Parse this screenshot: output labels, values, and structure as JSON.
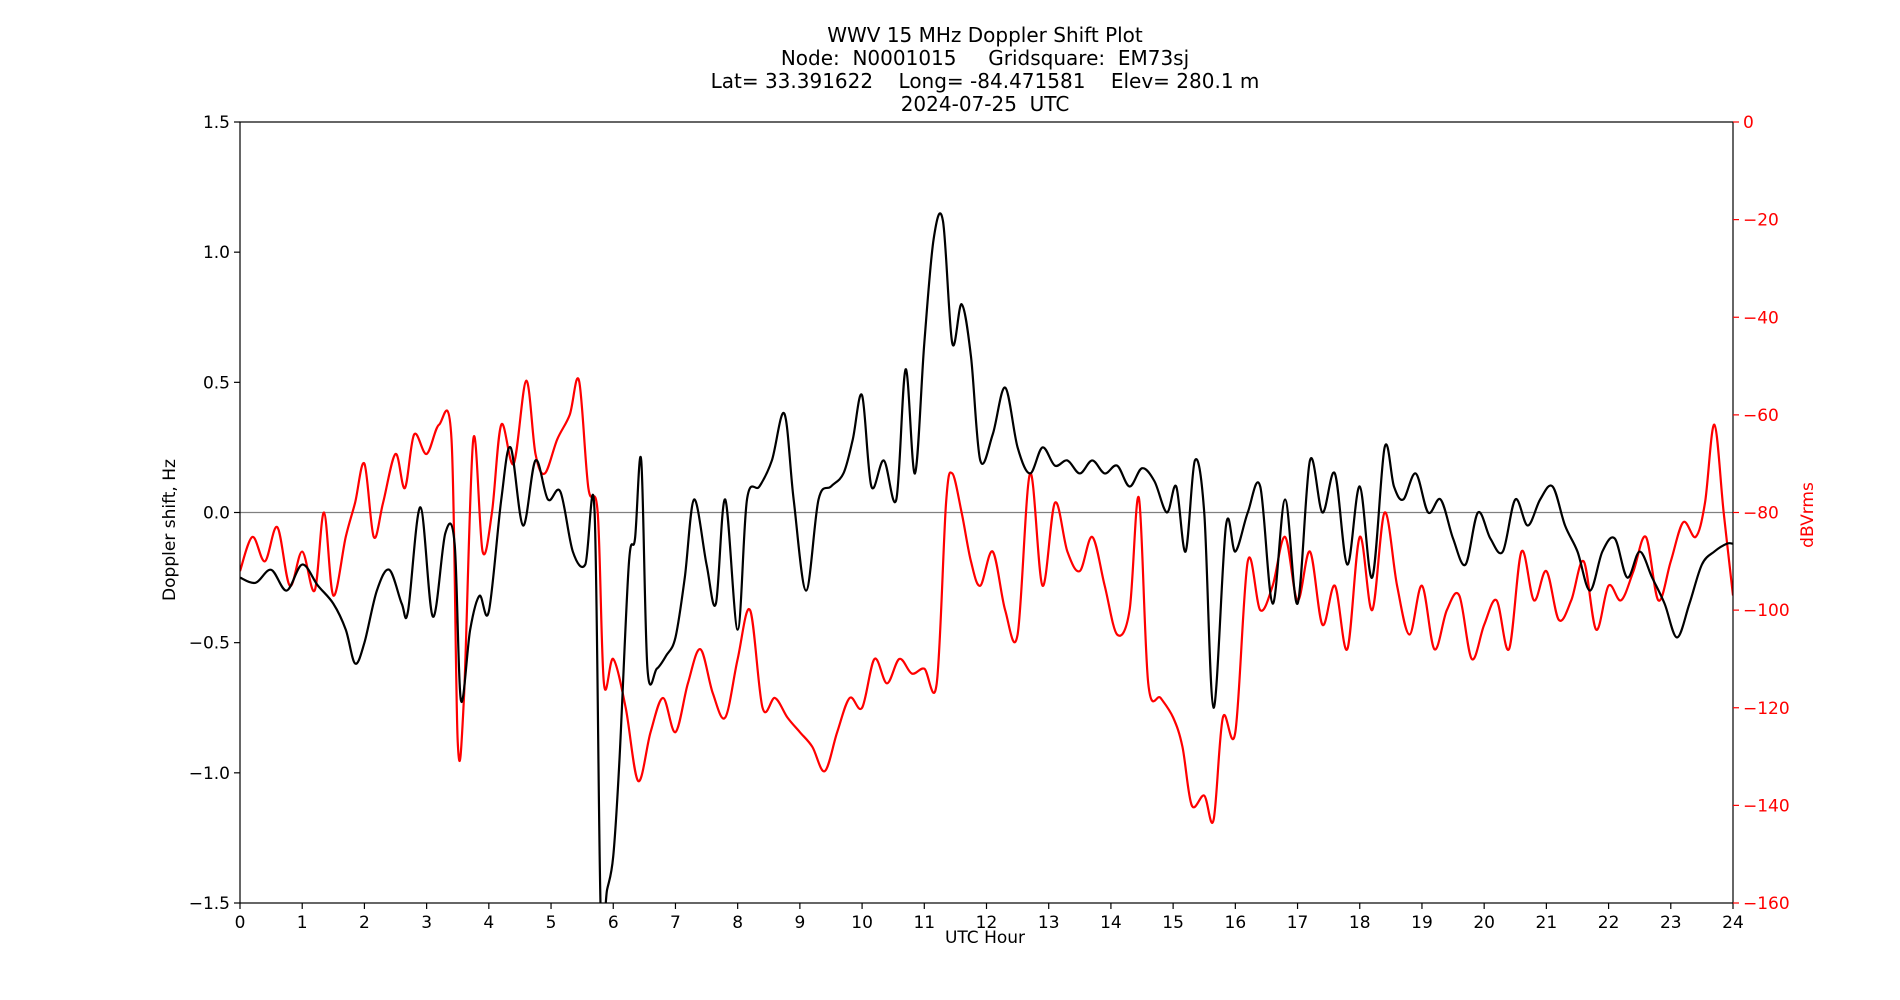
{
  "chart_data": {
    "type": "line",
    "title_lines": [
      "WWV 15 MHz Doppler Shift Plot",
      "Node:  N0001015     Gridsquare:  EM73sj",
      "Lat= 33.391622    Long= -84.471581    Elev= 280.1 m",
      "2024-07-25  UTC"
    ],
    "xlabel": "UTC Hour",
    "ylabel_left": "Doppler shift, Hz",
    "ylabel_right": "dBVrms",
    "xlim": [
      0,
      24
    ],
    "ylim_left": [
      -1.5,
      1.5
    ],
    "ylim_right": [
      -160,
      0
    ],
    "x_ticks": [
      0,
      1,
      2,
      3,
      4,
      5,
      6,
      7,
      8,
      9,
      10,
      11,
      12,
      13,
      14,
      15,
      16,
      17,
      18,
      19,
      20,
      21,
      22,
      23,
      24
    ],
    "y_ticks_left": [
      "1.5",
      "1.0",
      "0.5",
      "0.0",
      "−0.5",
      "−1.0",
      "−1.5"
    ],
    "y_tick_values_left": [
      1.5,
      1.0,
      0.5,
      0.0,
      -0.5,
      -1.0,
      -1.5
    ],
    "y_ticks_right": [
      "0",
      "−20",
      "−40",
      "−60",
      "−80",
      "−100",
      "−120",
      "−140",
      "−160"
    ],
    "y_tick_values_right": [
      0,
      -20,
      -40,
      -60,
      -80,
      -100,
      -120,
      -140,
      -160
    ],
    "zero_line": true,
    "grid": false,
    "colors": {
      "doppler": "#000000",
      "power": "#ff0000",
      "zero_line": "#808080",
      "right_axis": "#ff0000"
    },
    "series": [
      {
        "axis": "left",
        "color": "#000000",
        "x": [
          0,
          0.25,
          0.5,
          0.75,
          1.0,
          1.25,
          1.5,
          1.7,
          1.85,
          2.0,
          2.2,
          2.4,
          2.6,
          2.7,
          2.9,
          3.1,
          3.3,
          3.45,
          3.55,
          3.7,
          3.85,
          4.0,
          4.2,
          4.35,
          4.55,
          4.75,
          4.95,
          5.15,
          5.35,
          5.55,
          5.7,
          5.8,
          5.9,
          6.0,
          6.1,
          6.25,
          6.35,
          6.45,
          6.55,
          6.7,
          6.85,
          7.0,
          7.15,
          7.3,
          7.5,
          7.65,
          7.8,
          8.0,
          8.15,
          8.35,
          8.55,
          8.75,
          8.9,
          9.1,
          9.3,
          9.5,
          9.7,
          9.85,
          10.0,
          10.15,
          10.35,
          10.55,
          10.7,
          10.85,
          11.0,
          11.15,
          11.3,
          11.45,
          11.6,
          11.75,
          11.9,
          12.1,
          12.3,
          12.5,
          12.7,
          12.9,
          13.1,
          13.3,
          13.5,
          13.7,
          13.9,
          14.1,
          14.3,
          14.5,
          14.7,
          14.9,
          15.05,
          15.2,
          15.35,
          15.5,
          15.65,
          15.85,
          16.0,
          16.2,
          16.4,
          16.6,
          16.8,
          17.0,
          17.2,
          17.4,
          17.6,
          17.8,
          18.0,
          18.2,
          18.4,
          18.55,
          18.7,
          18.9,
          19.1,
          19.3,
          19.5,
          19.7,
          19.9,
          20.1,
          20.3,
          20.5,
          20.7,
          20.9,
          21.1,
          21.3,
          21.5,
          21.7,
          21.9,
          22.1,
          22.3,
          22.5,
          22.7,
          22.9,
          23.1,
          23.3,
          23.5,
          23.7,
          23.9,
          24.0
        ],
        "y": [
          -0.25,
          -0.27,
          -0.22,
          -0.3,
          -0.2,
          -0.28,
          -0.35,
          -0.45,
          -0.58,
          -0.5,
          -0.3,
          -0.22,
          -0.35,
          -0.38,
          0.02,
          -0.4,
          -0.08,
          -0.12,
          -0.72,
          -0.45,
          -0.32,
          -0.38,
          0.05,
          0.25,
          -0.05,
          0.2,
          0.05,
          0.08,
          -0.15,
          -0.2,
          0.0,
          -1.55,
          -1.45,
          -1.32,
          -0.95,
          -0.2,
          -0.1,
          0.2,
          -0.6,
          -0.6,
          -0.55,
          -0.48,
          -0.25,
          0.05,
          -0.2,
          -0.35,
          0.05,
          -0.45,
          0.05,
          0.1,
          0.2,
          0.38,
          0.05,
          -0.3,
          0.05,
          0.1,
          0.15,
          0.28,
          0.45,
          0.1,
          0.2,
          0.05,
          0.55,
          0.15,
          0.65,
          1.05,
          1.12,
          0.65,
          0.8,
          0.6,
          0.2,
          0.3,
          0.48,
          0.25,
          0.15,
          0.25,
          0.18,
          0.2,
          0.15,
          0.2,
          0.15,
          0.18,
          0.1,
          0.17,
          0.12,
          0.0,
          0.1,
          -0.15,
          0.2,
          0.0,
          -0.75,
          -0.05,
          -0.15,
          0.0,
          0.1,
          -0.35,
          0.05,
          -0.35,
          0.2,
          0.0,
          0.15,
          -0.2,
          0.1,
          -0.25,
          0.25,
          0.1,
          0.05,
          0.15,
          0.0,
          0.05,
          -0.1,
          -0.2,
          0.0,
          -0.1,
          -0.15,
          0.05,
          -0.05,
          0.05,
          0.1,
          -0.05,
          -0.15,
          -0.3,
          -0.15,
          -0.1,
          -0.25,
          -0.15,
          -0.25,
          -0.35,
          -0.48,
          -0.35,
          -0.2,
          -0.15,
          -0.12,
          -0.12
        ]
      },
      {
        "axis": "right",
        "color": "#ff0000",
        "x": [
          0,
          0.2,
          0.4,
          0.6,
          0.8,
          1.0,
          1.2,
          1.35,
          1.5,
          1.7,
          1.85,
          2.0,
          2.15,
          2.3,
          2.5,
          2.65,
          2.8,
          3.0,
          3.2,
          3.4,
          3.5,
          3.6,
          3.75,
          3.9,
          4.05,
          4.2,
          4.4,
          4.6,
          4.75,
          4.9,
          5.1,
          5.3,
          5.45,
          5.6,
          5.75,
          5.85,
          6.0,
          6.2,
          6.4,
          6.6,
          6.8,
          7.0,
          7.2,
          7.4,
          7.6,
          7.8,
          8.0,
          8.2,
          8.4,
          8.6,
          8.8,
          9.0,
          9.2,
          9.4,
          9.6,
          9.8,
          10.0,
          10.2,
          10.4,
          10.6,
          10.8,
          11.0,
          11.2,
          11.35,
          11.45,
          11.6,
          11.75,
          11.9,
          12.1,
          12.3,
          12.5,
          12.7,
          12.9,
          13.1,
          13.3,
          13.5,
          13.7,
          13.9,
          14.1,
          14.3,
          14.45,
          14.6,
          14.8,
          15.0,
          15.15,
          15.3,
          15.5,
          15.65,
          15.8,
          16.0,
          16.2,
          16.4,
          16.6,
          16.8,
          17.0,
          17.2,
          17.4,
          17.6,
          17.8,
          18.0,
          18.2,
          18.4,
          18.6,
          18.8,
          19.0,
          19.2,
          19.4,
          19.6,
          19.8,
          20.0,
          20.2,
          20.4,
          20.6,
          20.8,
          21.0,
          21.2,
          21.4,
          21.6,
          21.8,
          22.0,
          22.2,
          22.4,
          22.6,
          22.8,
          23.0,
          23.2,
          23.4,
          23.55,
          23.7,
          23.85,
          24.0
        ],
        "y": [
          -92,
          -85,
          -90,
          -83,
          -95,
          -88,
          -96,
          -80,
          -97,
          -85,
          -78,
          -70,
          -85,
          -78,
          -68,
          -75,
          -64,
          -68,
          -62,
          -65,
          -127,
          -118,
          -65,
          -88,
          -80,
          -62,
          -70,
          -53,
          -68,
          -72,
          -65,
          -60,
          -53,
          -75,
          -80,
          -115,
          -110,
          -120,
          -135,
          -125,
          -118,
          -125,
          -115,
          -108,
          -117,
          -122,
          -110,
          -100,
          -120,
          -118,
          -122,
          -125,
          -128,
          -133,
          -125,
          -118,
          -120,
          -110,
          -115,
          -110,
          -113,
          -112,
          -115,
          -78,
          -72,
          -80,
          -90,
          -95,
          -88,
          -100,
          -105,
          -72,
          -95,
          -78,
          -88,
          -92,
          -85,
          -95,
          -105,
          -100,
          -77,
          -115,
          -118,
          -122,
          -128,
          -140,
          -138,
          -143,
          -122,
          -125,
          -90,
          -100,
          -95,
          -85,
          -98,
          -88,
          -103,
          -95,
          -108,
          -85,
          -100,
          -80,
          -95,
          -105,
          -95,
          -108,
          -100,
          -97,
          -110,
          -103,
          -98,
          -108,
          -88,
          -98,
          -92,
          -102,
          -98,
          -90,
          -104,
          -95,
          -98,
          -92,
          -85,
          -98,
          -90,
          -82,
          -85,
          -78,
          -62,
          -80,
          -97
        ]
      }
    ]
  }
}
